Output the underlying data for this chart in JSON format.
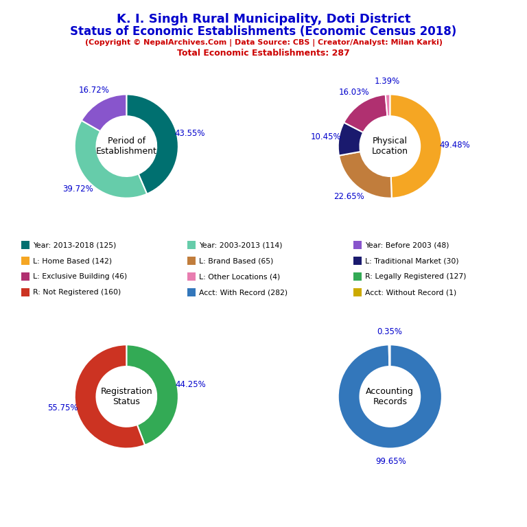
{
  "title_line1": "K. I. Singh Rural Municipality, Doti District",
  "title_line2": "Status of Economic Establishments (Economic Census 2018)",
  "subtitle": "(Copyright © NepalArchives.Com | Data Source: CBS | Creator/Analyst: Milan Karki)",
  "total_line": "Total Economic Establishments: 287",
  "title_color": "#0000cc",
  "subtitle_color": "#cc0000",
  "pct_color": "#0000cc",
  "pie1_label": "Period of\nEstablishment",
  "pie1_values": [
    43.55,
    39.72,
    16.72
  ],
  "pie1_colors": [
    "#007070",
    "#66ccaa",
    "#8855cc"
  ],
  "pie1_pcts": [
    "43.55%",
    "39.72%",
    "16.72%"
  ],
  "pie2_label": "Physical\nLocation",
  "pie2_values": [
    49.48,
    22.65,
    10.45,
    16.03,
    1.39
  ],
  "pie2_colors": [
    "#f5a623",
    "#c17d3c",
    "#1a1a6e",
    "#b03070",
    "#e87db0"
  ],
  "pie2_pcts": [
    "49.48%",
    "22.65%",
    "10.45%",
    "16.03%",
    "1.39%"
  ],
  "pie3_label": "Registration\nStatus",
  "pie3_values": [
    44.25,
    55.75
  ],
  "pie3_colors": [
    "#33aa55",
    "#cc3322"
  ],
  "pie3_pcts": [
    "44.25%",
    "55.75%"
  ],
  "pie4_label": "Accounting\nRecords",
  "pie4_values": [
    99.65,
    0.35
  ],
  "pie4_colors": [
    "#3377bb",
    "#ccaa00"
  ],
  "pie4_pcts": [
    "99.65%",
    "0.35%"
  ],
  "legend_items": [
    {
      "label": "Year: 2013-2018 (125)",
      "color": "#007070"
    },
    {
      "label": "Year: 2003-2013 (114)",
      "color": "#66ccaa"
    },
    {
      "label": "Year: Before 2003 (48)",
      "color": "#8855cc"
    },
    {
      "label": "L: Home Based (142)",
      "color": "#f5a623"
    },
    {
      "label": "L: Brand Based (65)",
      "color": "#c17d3c"
    },
    {
      "label": "L: Traditional Market (30)",
      "color": "#1a1a6e"
    },
    {
      "label": "L: Exclusive Building (46)",
      "color": "#b03070"
    },
    {
      "label": "L: Other Locations (4)",
      "color": "#e87db0"
    },
    {
      "label": "R: Legally Registered (127)",
      "color": "#33aa55"
    },
    {
      "label": "R: Not Registered (160)",
      "color": "#cc3322"
    },
    {
      "label": "Acct: With Record (282)",
      "color": "#3377bb"
    },
    {
      "label": "Acct: Without Record (1)",
      "color": "#ccaa00"
    }
  ]
}
